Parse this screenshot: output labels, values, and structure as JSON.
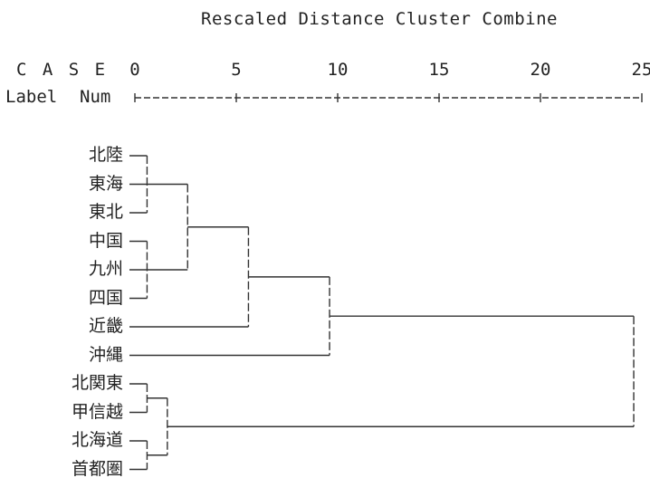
{
  "chart_data": {
    "type": "dendrogram",
    "title": "Rescaled Distance Cluster Combine",
    "header_case": "C A S E",
    "header_label": "Label",
    "header_num": "Num",
    "axis_ticks": [
      0,
      5,
      10,
      15,
      20,
      25
    ],
    "xlim": [
      0,
      25
    ],
    "labels": [
      "北陸",
      "東海",
      "東北",
      "中国",
      "九州",
      "四国",
      "近畿",
      "沖縄",
      "北関東",
      "甲信越",
      "北海道",
      "首都圏"
    ],
    "merges": [
      {
        "members": [
          0,
          1,
          2
        ],
        "distance": 0.6
      },
      {
        "members": [
          3,
          4,
          5
        ],
        "distance": 0.6
      },
      {
        "members": [
          8,
          9
        ],
        "distance": 0.6
      },
      {
        "members": [
          10,
          11
        ],
        "distance": 0.6
      },
      {
        "clusters": [
          "0-2",
          "3-5"
        ],
        "distance": 2.6
      },
      {
        "clusters": [
          "8-9",
          "10-11"
        ],
        "distance": 1.6
      },
      {
        "clusters": [
          "0-5",
          "6"
        ],
        "distance": 5.6
      },
      {
        "clusters": [
          "0-6",
          "7"
        ],
        "distance": 9.6
      },
      {
        "clusters": [
          "0-7",
          "8-11"
        ],
        "distance": 24.6
      }
    ]
  }
}
